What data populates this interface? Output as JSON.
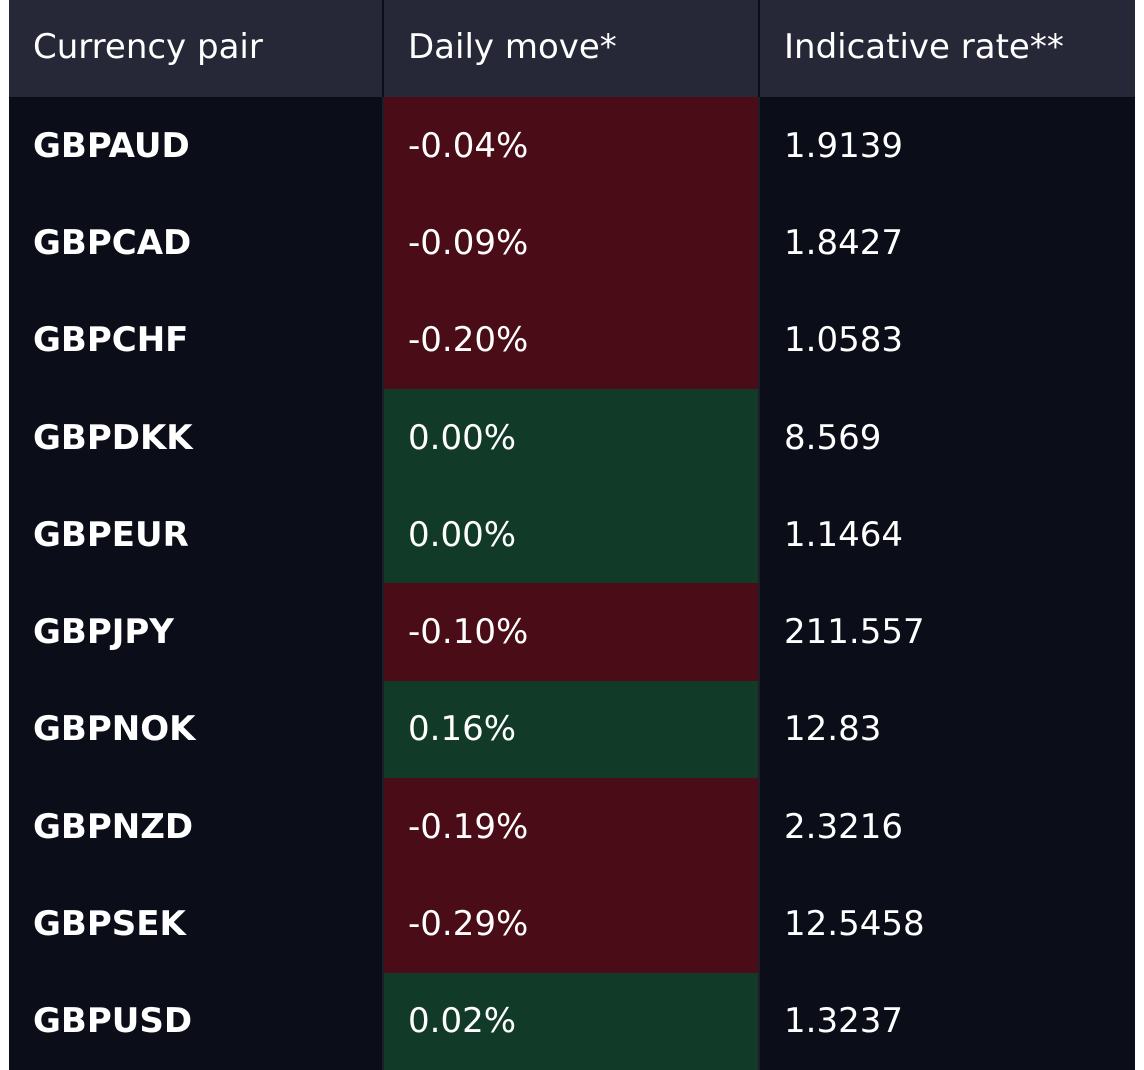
{
  "table": {
    "headers": {
      "pair": "Currency pair",
      "move": "Daily move*",
      "rate": "Indicative rate**"
    },
    "colors": {
      "background": "#0b0d18",
      "header_background": "#262837",
      "negative_move": "#4a0c16",
      "positive_move": "#123a28"
    },
    "rows": [
      {
        "pair": "GBPAUD",
        "move": "-0.04%",
        "rate": "1.9139",
        "direction": "down"
      },
      {
        "pair": "GBPCAD",
        "move": "-0.09%",
        "rate": "1.8427",
        "direction": "down"
      },
      {
        "pair": "GBPCHF",
        "move": "-0.20%",
        "rate": "1.0583",
        "direction": "down"
      },
      {
        "pair": "GBPDKK",
        "move": "0.00%",
        "rate": "8.569",
        "direction": "up"
      },
      {
        "pair": "GBPEUR",
        "move": "0.00%",
        "rate": "1.1464",
        "direction": "up"
      },
      {
        "pair": "GBPJPY",
        "move": "-0.10%",
        "rate": "211.557",
        "direction": "down"
      },
      {
        "pair": "GBPNOK",
        "move": "0.16%",
        "rate": "12.83",
        "direction": "up"
      },
      {
        "pair": "GBPNZD",
        "move": "-0.19%",
        "rate": "2.3216",
        "direction": "down"
      },
      {
        "pair": "GBPSEK",
        "move": "-0.29%",
        "rate": "12.5458",
        "direction": "down"
      },
      {
        "pair": "GBPUSD",
        "move": "0.02%",
        "rate": "1.3237",
        "direction": "up"
      }
    ]
  }
}
